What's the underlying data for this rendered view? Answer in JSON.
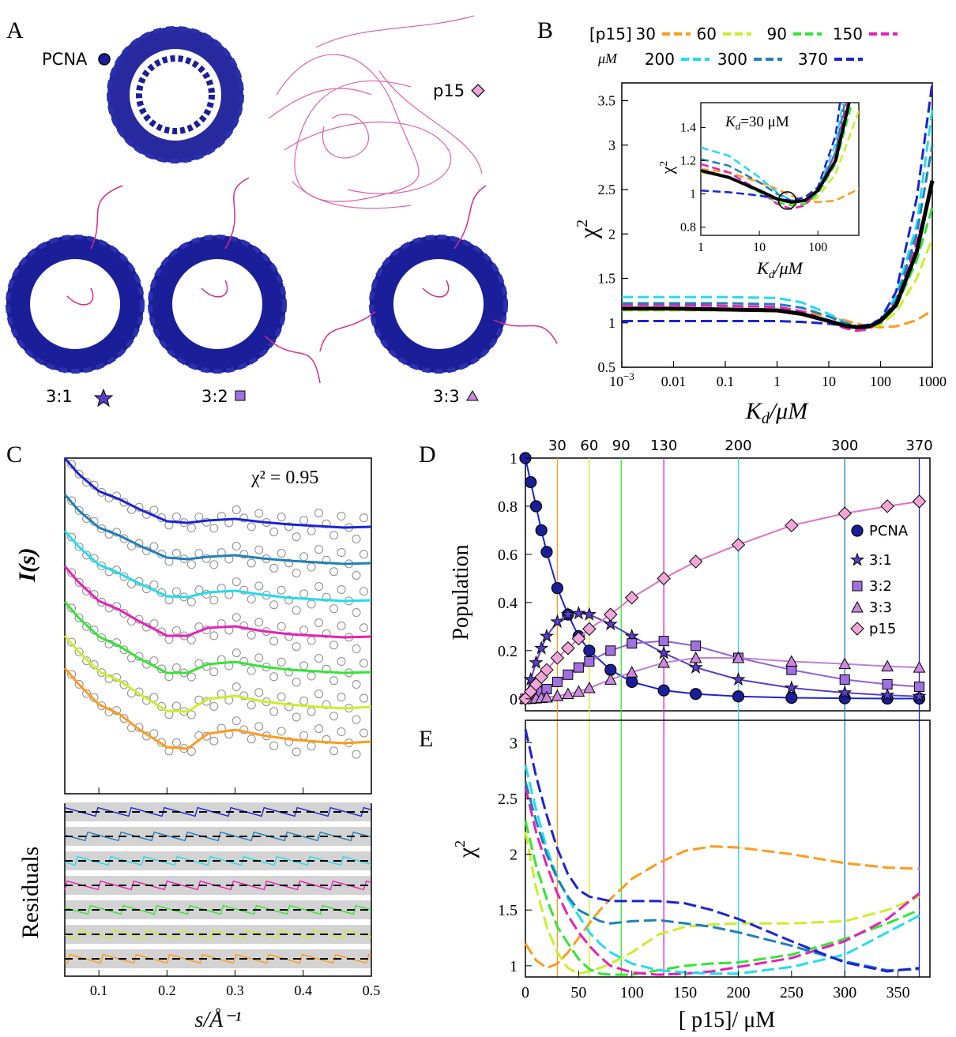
{
  "colors": {
    "c30": "#ff9a1a",
    "c60": "#c8ef2a",
    "c90": "#33e533",
    "c150": "#e81fb8",
    "c200": "#22dcee",
    "c300": "#1f7fb8",
    "c370": "#1a23d6",
    "black": "#000000",
    "pcna": "#1a1f99",
    "p15": "#d62b8c",
    "gray": "#8c8c8c",
    "band": "#d3d3d3"
  },
  "panel_labels": {
    "a": "A",
    "b": "B",
    "c": "C",
    "d": "D",
    "e": "E"
  },
  "panel_a": {
    "pcna_label": "PCNA",
    "p15_label": "p15",
    "label_31": "3:1",
    "label_32": "3:2",
    "label_33": "3:3"
  },
  "legend_b": {
    "title_line1": "[p15]",
    "title_line2": "μM",
    "entries": [
      "30",
      "60",
      "90",
      "150",
      "200",
      "300",
      "370"
    ]
  },
  "chart_data": [
    {
      "id": "B",
      "type": "line",
      "xscale": "log",
      "xlim": [
        0.001,
        1000
      ],
      "ylim": [
        0.5,
        3.7
      ],
      "xticks": [
        "10^-3",
        "0.01",
        "0.1",
        "1",
        "10",
        "100",
        "1000"
      ],
      "yticks": [
        "0.5",
        "1",
        "1.5",
        "2",
        "2.5",
        "3",
        "3.5"
      ],
      "xlabel": "K_d/μM",
      "ylabel": "χ²",
      "x": [
        0.001,
        0.01,
        0.1,
        1,
        3,
        10,
        20,
        35,
        60,
        100,
        200,
        500,
        1000
      ],
      "series": [
        {
          "name": "30",
          "values": [
            1.16,
            1.16,
            1.16,
            1.15,
            1.13,
            1.07,
            1.03,
            0.99,
            0.96,
            0.95,
            0.96,
            1.03,
            1.14
          ]
        },
        {
          "name": "60",
          "values": [
            1.14,
            1.14,
            1.14,
            1.13,
            1.1,
            1.02,
            0.97,
            0.94,
            0.94,
            0.98,
            1.12,
            1.5,
            1.95
          ]
        },
        {
          "name": "90",
          "values": [
            1.15,
            1.15,
            1.15,
            1.14,
            1.1,
            1.01,
            0.95,
            0.93,
            0.94,
            1.0,
            1.18,
            1.7,
            2.3
          ]
        },
        {
          "name": "150",
          "values": [
            1.2,
            1.2,
            1.19,
            1.18,
            1.13,
            1.02,
            0.94,
            0.91,
            0.93,
            1.02,
            1.25,
            1.9,
            2.55
          ]
        },
        {
          "name": "200",
          "values": [
            1.29,
            1.29,
            1.29,
            1.28,
            1.23,
            1.1,
            1.01,
            0.96,
            0.96,
            1.03,
            1.3,
            2.1,
            3.4
          ]
        },
        {
          "name": "300",
          "values": [
            1.22,
            1.22,
            1.22,
            1.21,
            1.17,
            1.07,
            1.0,
            0.96,
            0.96,
            1.02,
            1.25,
            2.0,
            3.0
          ]
        },
        {
          "name": "370",
          "values": [
            1.02,
            1.02,
            1.02,
            1.02,
            1.01,
            0.99,
            0.97,
            0.96,
            0.98,
            1.04,
            1.35,
            2.4,
            3.7
          ]
        },
        {
          "name": "",
          "values": [
            1.16,
            1.16,
            1.15,
            1.14,
            1.1,
            1.02,
            0.97,
            0.95,
            0.96,
            1.02,
            1.2,
            1.8,
            2.6
          ]
        }
      ],
      "inset": {
        "xlim": [
          1,
          500
        ],
        "ylim": [
          0.75,
          1.55
        ],
        "xticks": [
          "1",
          "10",
          "100"
        ],
        "yticks": [
          "0.8",
          "1",
          "1.2",
          "1.4"
        ],
        "xlabel": "K_d/μM",
        "ylabel": "χ²",
        "annotation": "K_d=30 μM",
        "marker_x": 30,
        "marker_y": 0.96
      }
    },
    {
      "id": "C",
      "type": "line",
      "xlim": [
        0.05,
        0.5
      ],
      "xticks": [
        "0.1",
        "0.2",
        "0.3",
        "0.4",
        "0.5"
      ],
      "xlabel": "s/Å⁻¹",
      "ylabel": "I(s)",
      "ylabel2": "Residuals",
      "annotation": "χ² = 0.95",
      "x": [
        0.05,
        0.07,
        0.1,
        0.13,
        0.16,
        0.2,
        0.23,
        0.26,
        0.3,
        0.34,
        0.38,
        0.42,
        0.46,
        0.5
      ],
      "series": [
        {
          "name": "370",
          "offset": 0,
          "values": [
            0,
            0.2,
            0.42,
            0.52,
            0.65,
            0.8,
            0.82,
            0.79,
            0.77,
            0.81,
            0.84,
            0.86,
            0.88,
            0.87
          ]
        },
        {
          "name": "300",
          "offset": 1,
          "values": [
            0,
            0.2,
            0.42,
            0.52,
            0.65,
            0.8,
            0.82,
            0.79,
            0.77,
            0.81,
            0.84,
            0.86,
            0.88,
            0.87
          ]
        },
        {
          "name": "200",
          "offset": 2,
          "values": [
            0,
            0.2,
            0.43,
            0.54,
            0.67,
            0.83,
            0.84,
            0.78,
            0.76,
            0.81,
            0.85,
            0.87,
            0.89,
            0.88
          ]
        },
        {
          "name": "150",
          "offset": 3,
          "values": [
            0,
            0.2,
            0.44,
            0.55,
            0.7,
            0.88,
            0.88,
            0.78,
            0.76,
            0.82,
            0.86,
            0.88,
            0.9,
            0.89
          ]
        },
        {
          "name": "90",
          "offset": 4,
          "values": [
            0,
            0.2,
            0.44,
            0.56,
            0.72,
            0.9,
            0.9,
            0.79,
            0.76,
            0.82,
            0.86,
            0.88,
            0.9,
            0.89
          ]
        },
        {
          "name": "60",
          "offset": 5,
          "values": [
            0,
            0.2,
            0.45,
            0.57,
            0.74,
            0.95,
            0.96,
            0.8,
            0.76,
            0.83,
            0.87,
            0.9,
            0.92,
            0.9
          ]
        },
        {
          "name": "30",
          "offset": 6,
          "values": [
            0,
            0.2,
            0.46,
            0.58,
            0.78,
            1.0,
            1.02,
            0.83,
            0.78,
            0.85,
            0.9,
            0.93,
            0.95,
            0.93
          ]
        }
      ]
    },
    {
      "id": "D",
      "type": "scatter",
      "xlim": [
        0,
        380
      ],
      "ylim": [
        -0.05,
        1.0
      ],
      "xticks_top": [
        "30",
        "60",
        "90",
        "130",
        "200",
        "300",
        "370"
      ],
      "vlines": [
        30,
        60,
        90,
        130,
        200,
        300,
        370
      ],
      "yticks": [
        "0",
        "0.2",
        "0.4",
        "0.6",
        "0.8",
        "1"
      ],
      "ylabel": "Population",
      "x": [
        0,
        5,
        10,
        15,
        20,
        30,
        40,
        50,
        60,
        80,
        100,
        130,
        160,
        200,
        250,
        300,
        340,
        370
      ],
      "series": [
        {
          "name": "PCNA",
          "marker": "circle",
          "values": [
            1.0,
            0.9,
            0.8,
            0.7,
            0.61,
            0.46,
            0.35,
            0.26,
            0.2,
            0.12,
            0.07,
            0.035,
            0.02,
            0.01,
            0.004,
            0.002,
            0.001,
            0.001
          ]
        },
        {
          "name": "3:1",
          "marker": "star",
          "values": [
            0,
            0.08,
            0.15,
            0.21,
            0.26,
            0.32,
            0.35,
            0.355,
            0.35,
            0.31,
            0.26,
            0.19,
            0.13,
            0.08,
            0.045,
            0.025,
            0.015,
            0.01
          ]
        },
        {
          "name": "3:2",
          "marker": "square",
          "values": [
            0,
            0.005,
            0.015,
            0.03,
            0.04,
            0.07,
            0.1,
            0.13,
            0.155,
            0.2,
            0.23,
            0.24,
            0.22,
            0.17,
            0.12,
            0.08,
            0.06,
            0.05
          ]
        },
        {
          "name": "3:3",
          "marker": "triangle",
          "values": [
            0,
            0,
            0.002,
            0.004,
            0.006,
            0.012,
            0.02,
            0.03,
            0.045,
            0.08,
            0.11,
            0.15,
            0.17,
            0.17,
            0.155,
            0.145,
            0.135,
            0.13
          ]
        },
        {
          "name": "p15",
          "marker": "diamond",
          "values": [
            0,
            0.03,
            0.06,
            0.09,
            0.12,
            0.17,
            0.21,
            0.25,
            0.29,
            0.35,
            0.42,
            0.5,
            0.57,
            0.64,
            0.72,
            0.77,
            0.8,
            0.82
          ]
        }
      ]
    },
    {
      "id": "E",
      "type": "line",
      "xlim": [
        0,
        380
      ],
      "ylim": [
        0.9,
        3.2
      ],
      "xticks": [
        "0",
        "50",
        "100",
        "150",
        "200",
        "250",
        "300",
        "350"
      ],
      "yticks": [
        "1",
        "1.5",
        "2",
        "2.5",
        "3"
      ],
      "xlabel": "[ p15]/ μM",
      "ylabel": "χ²",
      "x": [
        0,
        10,
        20,
        30,
        40,
        50,
        60,
        70,
        80,
        100,
        125,
        150,
        175,
        200,
        250,
        300,
        340,
        370
      ],
      "series": [
        {
          "name": "30",
          "values": [
            1.2,
            1.05,
            0.98,
            1.02,
            1.12,
            1.25,
            1.38,
            1.5,
            1.6,
            1.78,
            1.92,
            2.03,
            2.07,
            2.06,
            2.0,
            1.92,
            1.88,
            1.87
          ]
        },
        {
          "name": "60",
          "values": [
            2.2,
            1.7,
            1.35,
            1.12,
            0.98,
            0.93,
            0.95,
            0.98,
            1.02,
            1.12,
            1.28,
            1.35,
            1.37,
            1.38,
            1.38,
            1.4,
            1.5,
            1.62
          ]
        },
        {
          "name": "90",
          "values": [
            2.3,
            1.9,
            1.6,
            1.35,
            1.2,
            1.06,
            0.97,
            0.93,
            0.92,
            0.92,
            0.96,
            1.0,
            1.02,
            1.03,
            1.1,
            1.24,
            1.38,
            1.5
          ]
        },
        {
          "name": "150",
          "values": [
            2.6,
            2.2,
            1.9,
            1.65,
            1.45,
            1.3,
            1.18,
            1.08,
            1.0,
            0.94,
            0.92,
            0.93,
            0.95,
            0.99,
            1.07,
            1.22,
            1.42,
            1.65
          ]
        },
        {
          "name": "200",
          "values": [
            2.8,
            2.4,
            2.05,
            1.8,
            1.6,
            1.45,
            1.3,
            1.2,
            1.12,
            1.02,
            0.96,
            0.94,
            0.93,
            0.93,
            0.99,
            1.1,
            1.3,
            1.45
          ]
        },
        {
          "name": "300",
          "values": [
            2.65,
            2.3,
            2.0,
            1.78,
            1.62,
            1.5,
            1.45,
            1.4,
            1.38,
            1.4,
            1.41,
            1.38,
            1.35,
            1.3,
            1.18,
            1.04,
            0.96,
            0.97
          ]
        },
        {
          "name": "370",
          "values": [
            3.12,
            2.7,
            2.35,
            2.05,
            1.82,
            1.68,
            1.62,
            1.6,
            1.58,
            1.58,
            1.58,
            1.56,
            1.5,
            1.42,
            1.22,
            1.03,
            0.95,
            0.98
          ]
        }
      ]
    }
  ]
}
